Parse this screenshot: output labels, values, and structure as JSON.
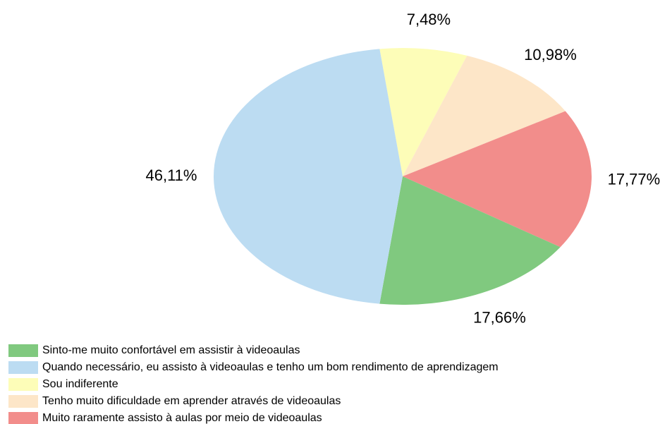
{
  "chart_data": {
    "type": "pie",
    "categories": [
      "Sinto-me muito confortável em assistir à videoaulas",
      "Quando necessário, eu assisto à videoaulas e tenho um bom rendimento de aprendizagem",
      "Sou indiferente",
      "Tenho muito dificuldade em aprender através de videoaulas",
      "Muito raramente assisto à aulas por meio de videoaulas"
    ],
    "values": [
      17.66,
      46.11,
      7.48,
      10.98,
      17.77
    ],
    "value_labels": [
      "17,66%",
      "46,11%",
      "7,48%",
      "10,98%",
      "17,77%"
    ],
    "colors": [
      "#80c97f",
      "#bcdcf2",
      "#fdfdb8",
      "#fde6c8",
      "#f28d8b"
    ],
    "legend": "bottom-left"
  }
}
